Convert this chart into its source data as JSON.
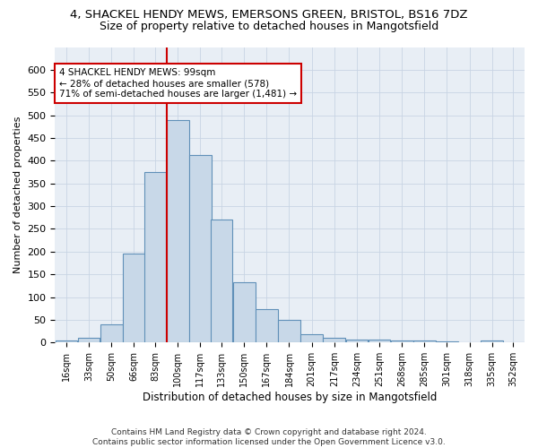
{
  "title_line1": "4, SHACKEL HENDY MEWS, EMERSONS GREEN, BRISTOL, BS16 7DZ",
  "title_line2": "Size of property relative to detached houses in Mangotsfield",
  "xlabel": "Distribution of detached houses by size in Mangotsfield",
  "ylabel": "Number of detached properties",
  "bar_color": "#c8d8e8",
  "bar_edge_color": "#6090b8",
  "annotation_text": "4 SHACKEL HENDY MEWS: 99sqm\n← 28% of detached houses are smaller (578)\n71% of semi-detached houses are larger (1,481) →",
  "annotation_box_color": "#ffffff",
  "annotation_box_edge": "#cc0000",
  "vline_color": "#cc0000",
  "categories": [
    "16sqm",
    "33sqm",
    "50sqm",
    "66sqm",
    "83sqm",
    "100sqm",
    "117sqm",
    "133sqm",
    "150sqm",
    "167sqm",
    "184sqm",
    "201sqm",
    "217sqm",
    "234sqm",
    "251sqm",
    "268sqm",
    "285sqm",
    "301sqm",
    "318sqm",
    "335sqm",
    "352sqm"
  ],
  "bin_left_edges": [
    7.5,
    24.5,
    41.5,
    58.5,
    74.5,
    91.5,
    108.5,
    124.5,
    141.5,
    158.5,
    175.5,
    192.5,
    209.5,
    226.5,
    243.5,
    260.5,
    277.5,
    294.5,
    311.5,
    328.5,
    344.5
  ],
  "bin_width": 17,
  "values": [
    5,
    10,
    40,
    195,
    375,
    490,
    412,
    270,
    133,
    74,
    50,
    19,
    10,
    7,
    7,
    5,
    5,
    3,
    1,
    5,
    1
  ],
  "vline_bin_index": 5,
  "ylim": [
    0,
    650
  ],
  "yticks": [
    0,
    50,
    100,
    150,
    200,
    250,
    300,
    350,
    400,
    450,
    500,
    550,
    600
  ],
  "grid_color": "#c8d4e4",
  "background_color": "#e8eef5",
  "footer_text": "Contains HM Land Registry data © Crown copyright and database right 2024.\nContains public sector information licensed under the Open Government Licence v3.0.",
  "title_fontsize": 9.5,
  "subtitle_fontsize": 9
}
